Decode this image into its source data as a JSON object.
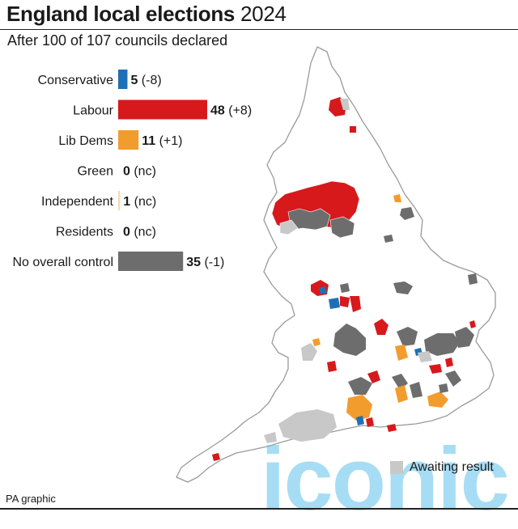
{
  "title_bold": "England local elections",
  "title_year": "2024",
  "subtitle": "After 100 of 107 councils declared",
  "legend_awaiting": "Awaiting result",
  "footer": "PA graphic",
  "watermark": "iconic",
  "colors": {
    "conservative": "#1f6fb5",
    "labour": "#d7191c",
    "libdem": "#f39c2e",
    "green": "#5aa02c",
    "independent": "#f5d9b8",
    "residents": "#999999",
    "noc": "#6d6d6d",
    "awaiting": "#c8c8c8",
    "land": "#ffffff",
    "outline": "#9a9a9a"
  },
  "chart_data": {
    "type": "bar",
    "orientation": "horizontal",
    "categories": [
      "Conservative",
      "Labour",
      "Lib Dems",
      "Green",
      "Independent",
      "Residents",
      "No overall control"
    ],
    "values": [
      5,
      48,
      11,
      0,
      1,
      0,
      35
    ],
    "changes": [
      "(-8)",
      "(+8)",
      "(+1)",
      "(nc)",
      "(nc)",
      "(nc)",
      "(-1)"
    ],
    "series_colors": [
      "#1f6fb5",
      "#d7191c",
      "#f39c2e",
      "#5aa02c",
      "#f5d9b8",
      "#999999",
      "#6d6d6d"
    ],
    "xlim": [
      0,
      48
    ]
  }
}
